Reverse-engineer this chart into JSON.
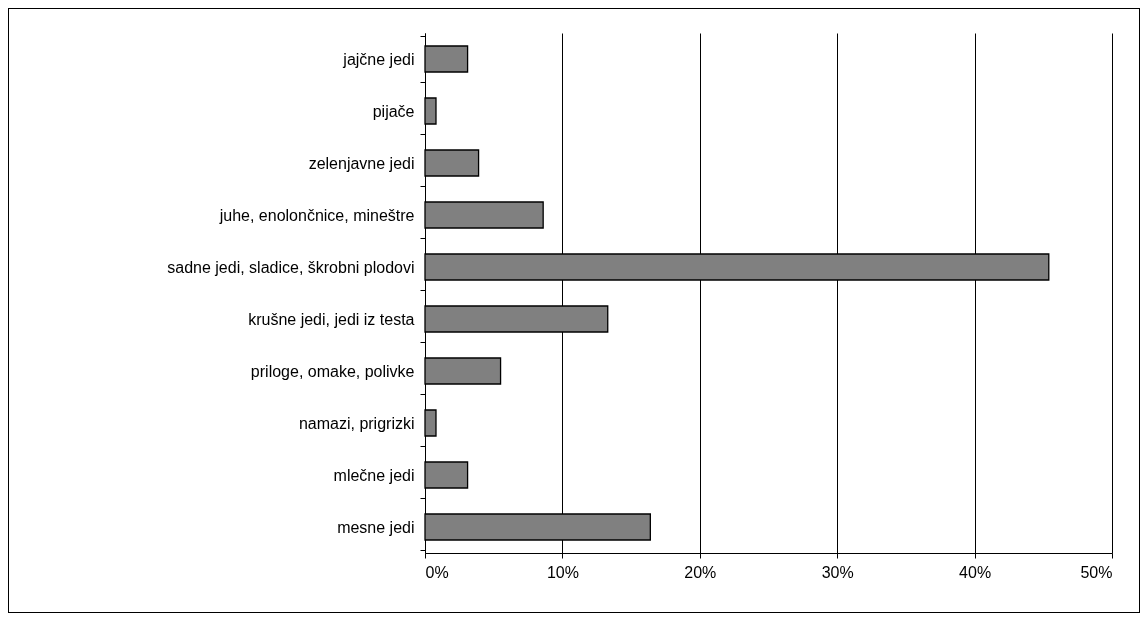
{
  "chart_data": {
    "type": "bar",
    "orientation": "horizontal",
    "categories": [
      "jajčne jedi",
      "pijače",
      "zelenjavne jedi",
      "juhe, enolončnice, mineštre",
      "sadne jedi, sladice, škrobni plodovi",
      "krušne jedi, jedi iz testa",
      "priloge, omake, polivke",
      "namazi, prigrizki",
      "mlečne jedi",
      "mesne jedi"
    ],
    "values": [
      3.1,
      0.8,
      3.9,
      8.6,
      45.4,
      13.3,
      5.5,
      0.8,
      3.1,
      16.4
    ],
    "color": "#808080",
    "xlim": [
      0,
      50
    ],
    "xticks": [
      {
        "value": 0,
        "label": "0%"
      },
      {
        "value": 10,
        "label": "10%"
      },
      {
        "value": 20,
        "label": "20%"
      },
      {
        "value": 30,
        "label": "30%"
      },
      {
        "value": 40,
        "label": "40%"
      },
      {
        "value": 50,
        "label": "50%"
      }
    ],
    "grid": "x"
  }
}
